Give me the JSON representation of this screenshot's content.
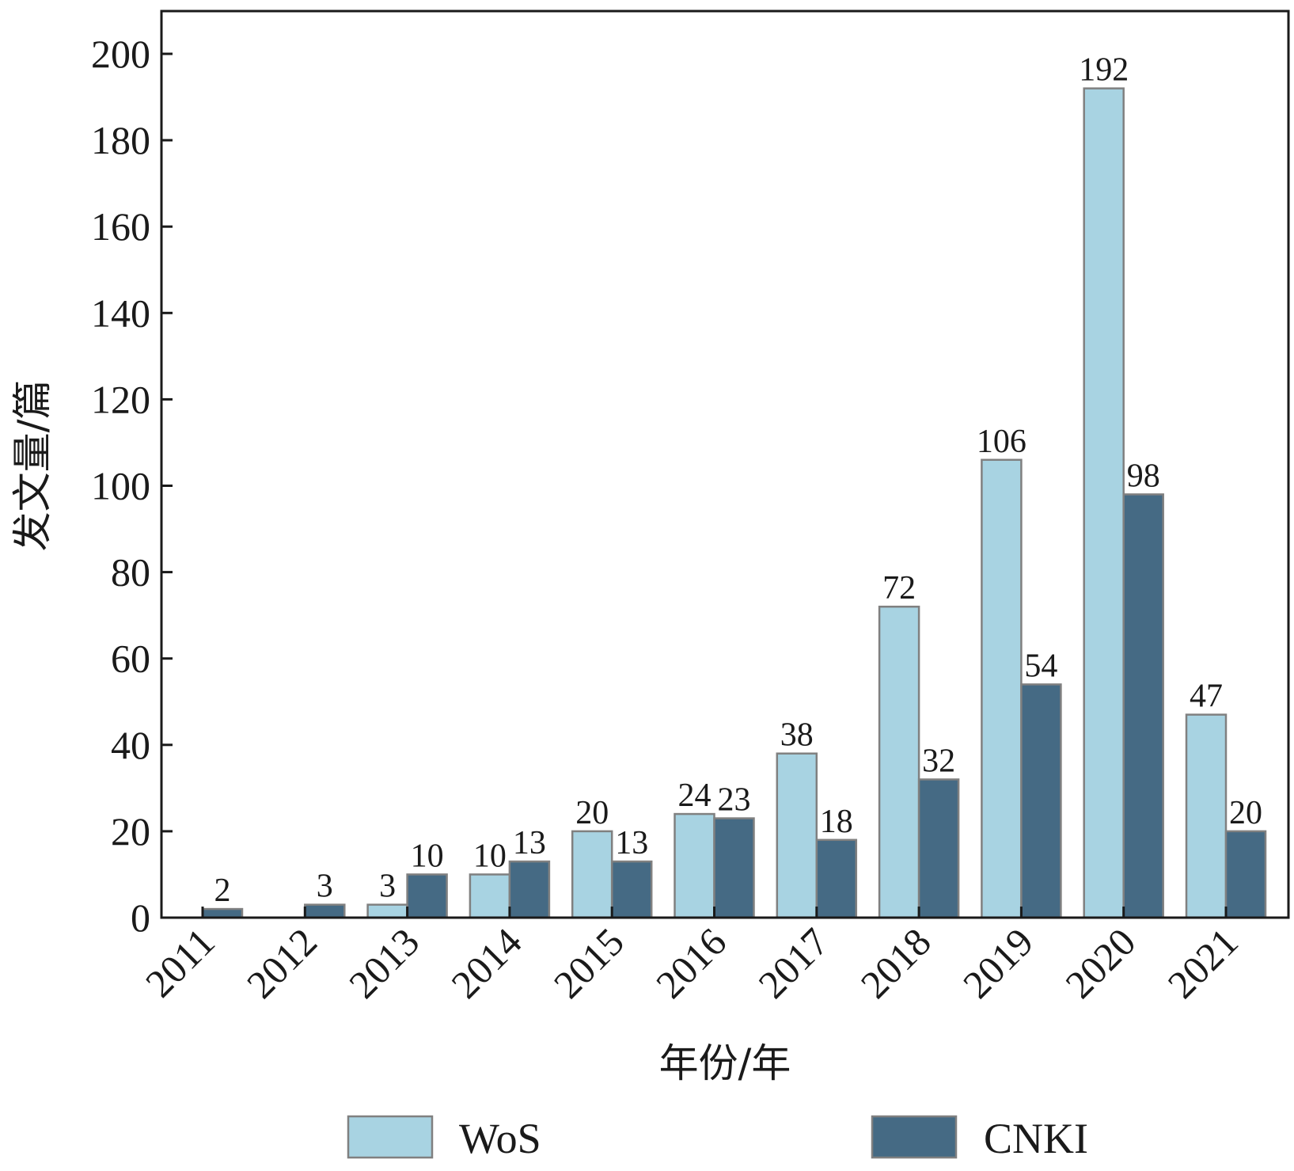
{
  "chart_data": {
    "type": "bar",
    "xlabel": "年份/年",
    "ylabel": "发文量/篇",
    "categories": [
      "2011",
      "2012",
      "2013",
      "2014",
      "2015",
      "2016",
      "2017",
      "2018",
      "2019",
      "2020",
      "2021"
    ],
    "series": [
      {
        "name": "WoS",
        "color": "#a8d3e2",
        "values": [
          0,
          0,
          3,
          10,
          20,
          24,
          38,
          72,
          106,
          192,
          47
        ],
        "labels": [
          "",
          "",
          "3",
          "10",
          "20",
          "24",
          "38",
          "72",
          "106",
          "192",
          "47"
        ]
      },
      {
        "name": "CNKI",
        "color": "#456a84",
        "values": [
          2,
          3,
          10,
          13,
          13,
          23,
          18,
          32,
          54,
          98,
          20
        ],
        "labels": [
          "2",
          "3",
          "10",
          "13",
          "13",
          "23",
          "18",
          "32",
          "54",
          "98",
          "20"
        ]
      }
    ],
    "ylim": [
      0,
      210
    ],
    "yticks": [
      0,
      20,
      40,
      60,
      80,
      100,
      120,
      140,
      160,
      180,
      200
    ],
    "grid": false,
    "legend": "bottom"
  }
}
